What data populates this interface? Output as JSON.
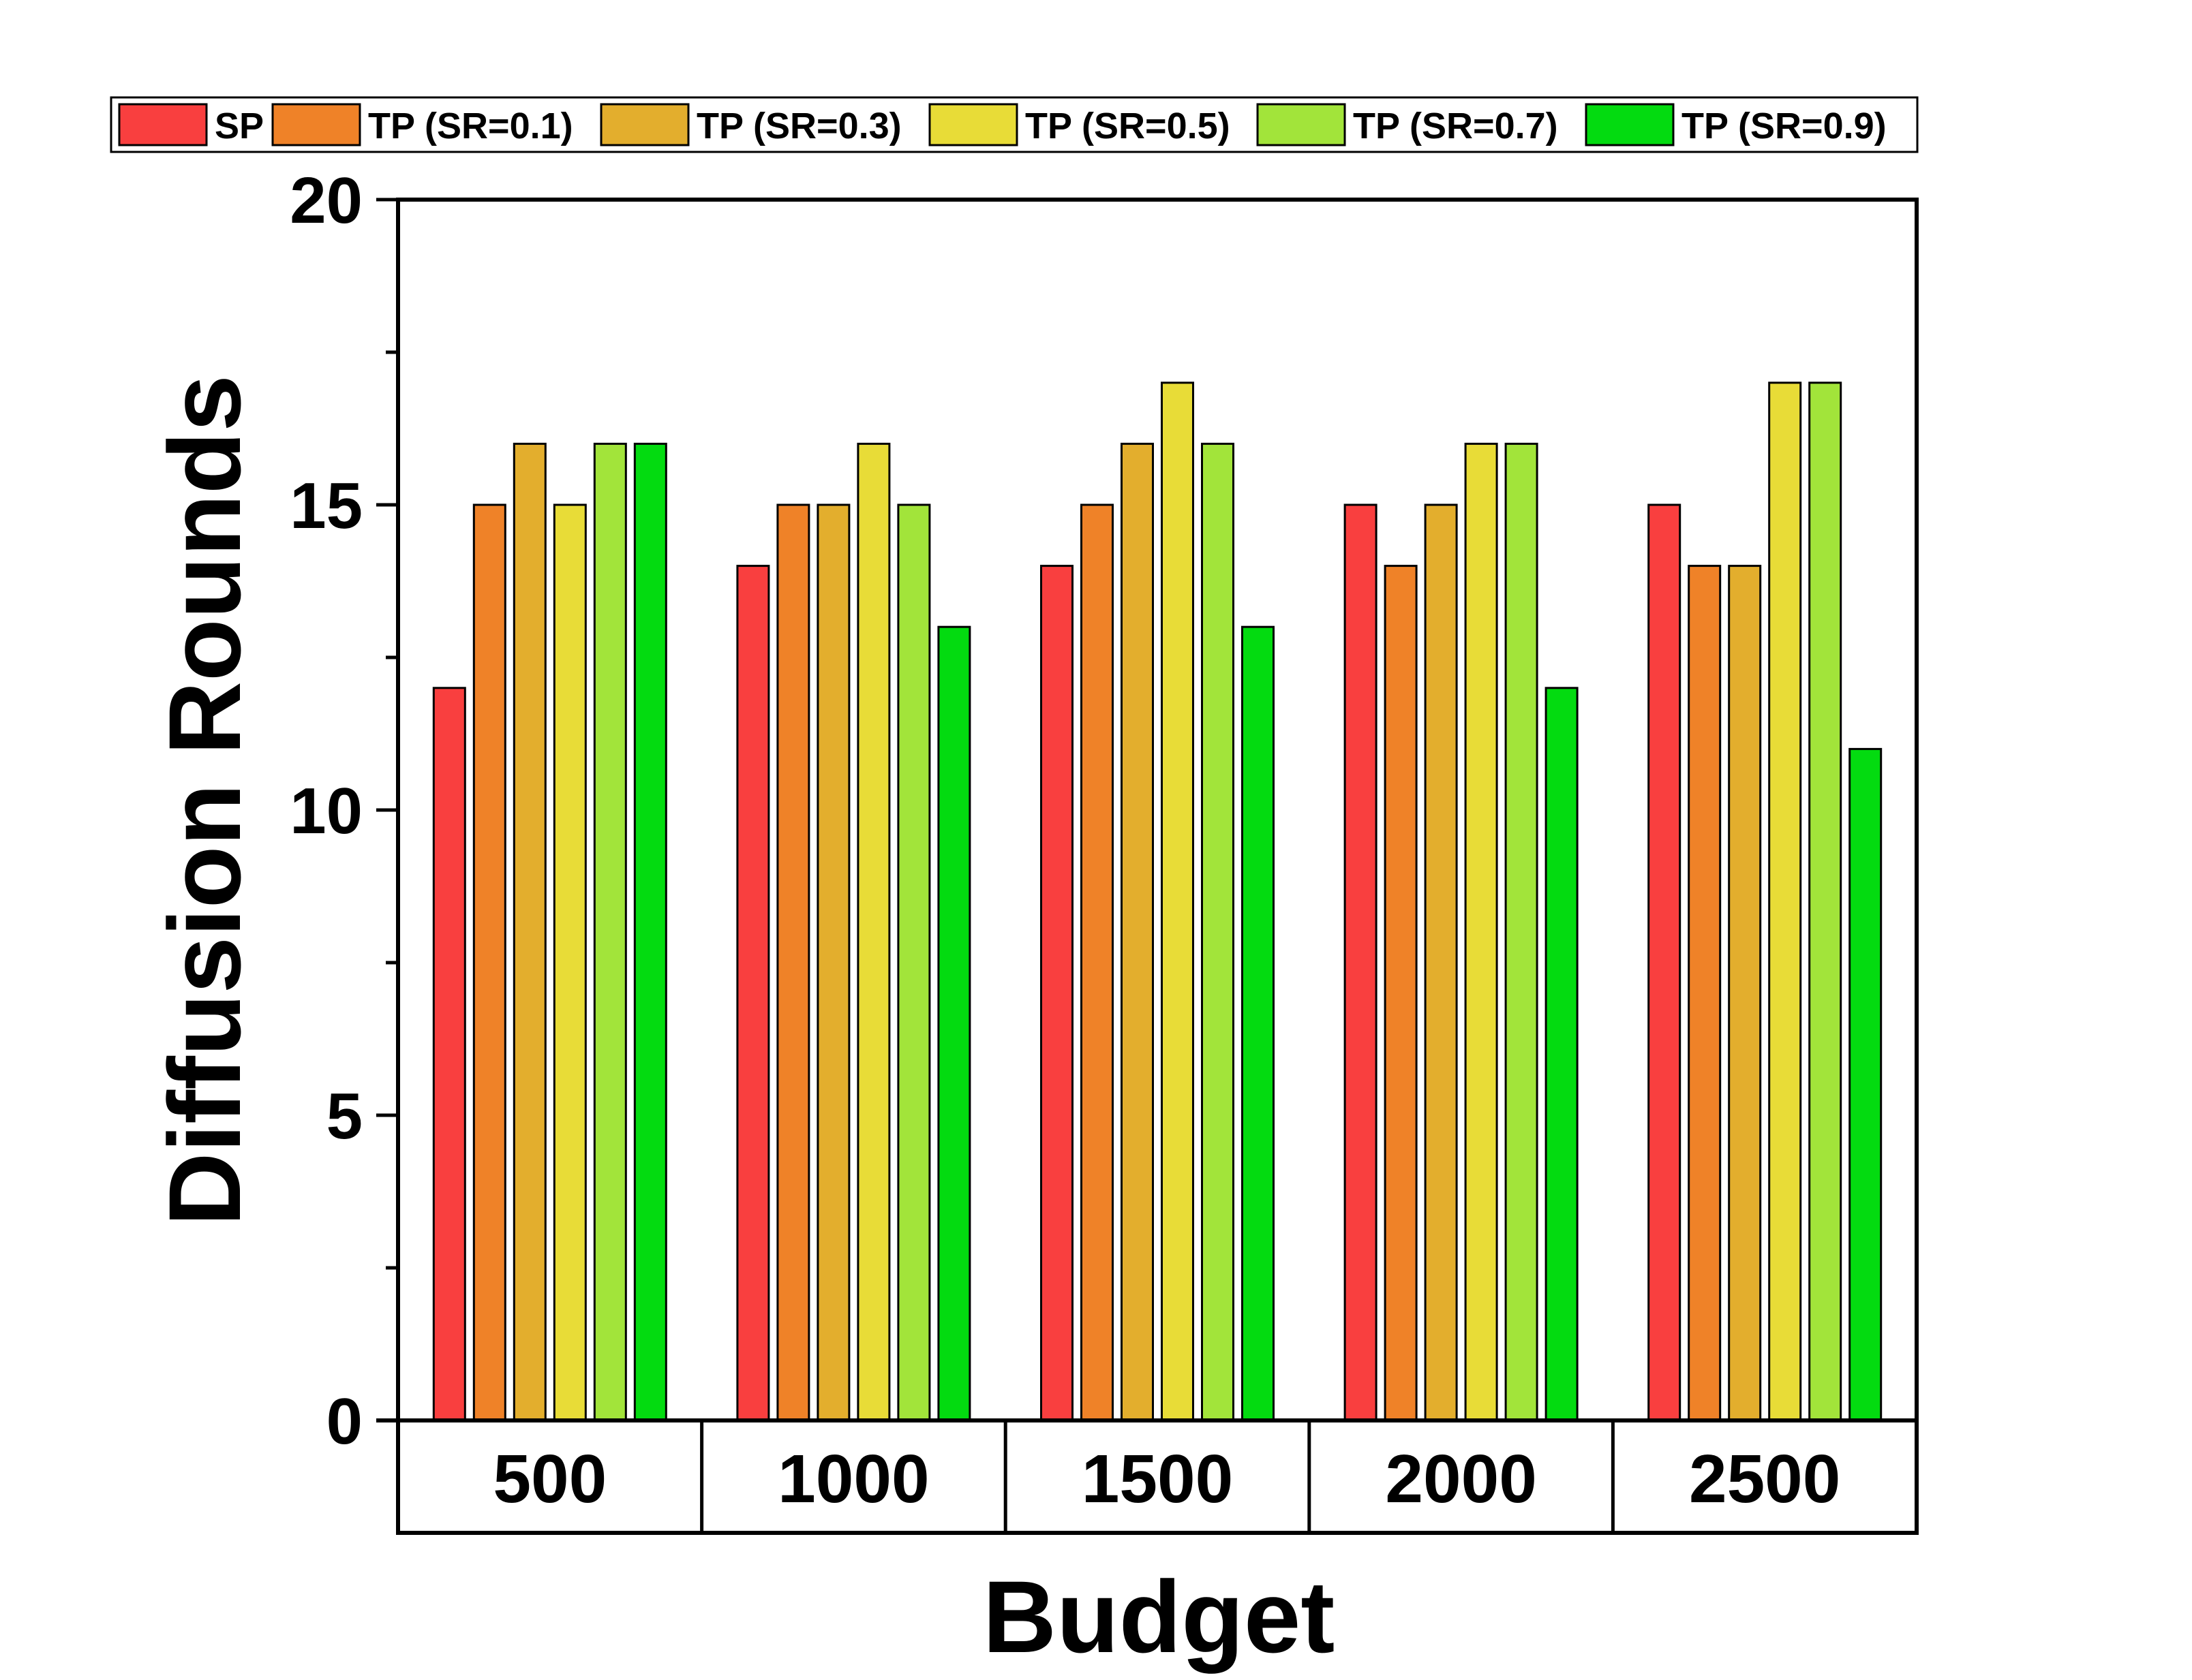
{
  "chart_data": {
    "type": "bar",
    "title": "",
    "xlabel": "Budget",
    "ylabel": "Diffusion Rounds",
    "categories": [
      "500",
      "1000",
      "1500",
      "2000",
      "2500"
    ],
    "ylim": [
      0,
      20
    ],
    "yticks": [
      0,
      5,
      10,
      15,
      20
    ],
    "yminor_step": 2.5,
    "grid": false,
    "legend_position": "top",
    "series": [
      {
        "name": "SP",
        "color": "#f93f3f",
        "values": [
          12,
          14,
          14,
          15,
          15
        ]
      },
      {
        "name": "TP (SR=0.1)",
        "color": "#ef8228",
        "values": [
          15,
          15,
          15,
          14,
          14
        ]
      },
      {
        "name": "TP (SR=0.3)",
        "color": "#e3ae2d",
        "values": [
          16,
          15,
          16,
          15,
          14
        ]
      },
      {
        "name": "TP (SR=0.5)",
        "color": "#e8dc37",
        "values": [
          15,
          16,
          17,
          16,
          17
        ]
      },
      {
        "name": "TP (SR=0.7)",
        "color": "#a2e43a",
        "values": [
          16,
          15,
          16,
          16,
          17
        ]
      },
      {
        "name": "TP (SR=0.9)",
        "color": "#03db10",
        "values": [
          16,
          13,
          13,
          12,
          11
        ]
      }
    ]
  }
}
